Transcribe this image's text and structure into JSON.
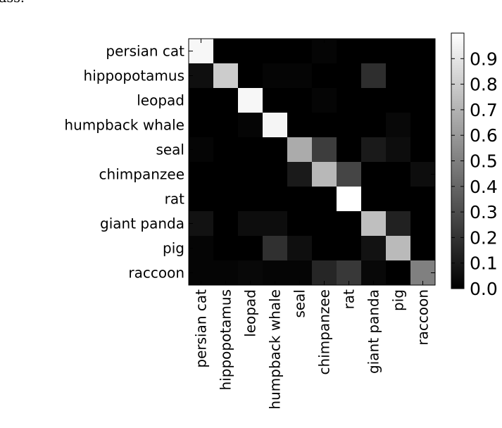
{
  "header_fragment": "lass.",
  "chart_data": {
    "type": "heatmap",
    "title": "",
    "xlabel": "",
    "ylabel": "",
    "rows": [
      "persian cat",
      "hippopotamus",
      "leopad",
      "humpback whale",
      "seal",
      "chimpanzee",
      "rat",
      "giant panda",
      "pig",
      "raccoon"
    ],
    "columns": [
      "persian cat",
      "hippopotamus",
      "leopad",
      "humpback whale",
      "seal",
      "chimpanzee",
      "rat",
      "giant panda",
      "pig",
      "raccoon"
    ],
    "values": [
      [
        0.97,
        0.0,
        0.0,
        0.0,
        0.0,
        0.02,
        0.0,
        0.0,
        0.0,
        0.0
      ],
      [
        0.06,
        0.8,
        0.0,
        0.02,
        0.02,
        0.0,
        0.0,
        0.18,
        0.0,
        0.0
      ],
      [
        0.0,
        0.0,
        0.97,
        0.0,
        0.0,
        0.02,
        0.0,
        0.0,
        0.0,
        0.0
      ],
      [
        0.0,
        0.0,
        0.02,
        0.96,
        0.0,
        0.0,
        0.0,
        0.0,
        0.03,
        0.0
      ],
      [
        0.02,
        0.0,
        0.0,
        0.0,
        0.67,
        0.24,
        0.0,
        0.1,
        0.05,
        0.0
      ],
      [
        0.0,
        0.0,
        0.0,
        0.0,
        0.1,
        0.72,
        0.27,
        0.0,
        0.0,
        0.05
      ],
      [
        0.0,
        0.0,
        0.0,
        0.0,
        0.0,
        0.0,
        1.0,
        0.0,
        0.0,
        0.0
      ],
      [
        0.07,
        0.0,
        0.05,
        0.05,
        0.0,
        0.0,
        0.0,
        0.75,
        0.13,
        0.0
      ],
      [
        0.02,
        0.0,
        0.0,
        0.19,
        0.06,
        0.0,
        0.0,
        0.07,
        0.73,
        0.0
      ],
      [
        0.02,
        0.02,
        0.03,
        0.02,
        0.02,
        0.15,
        0.22,
        0.03,
        0.0,
        0.5
      ]
    ],
    "colorbar": {
      "range": [
        0.0,
        1.0
      ],
      "ticks": [
        0.0,
        0.1,
        0.2,
        0.3,
        0.4,
        0.5,
        0.6,
        0.7,
        0.8,
        0.9
      ],
      "tick_labels": [
        "0.0",
        "0.1",
        "0.2",
        "0.3",
        "0.4",
        "0.5",
        "0.6",
        "0.7",
        "0.8",
        "0.9"
      ],
      "colormap": "gray"
    },
    "grid": false
  }
}
